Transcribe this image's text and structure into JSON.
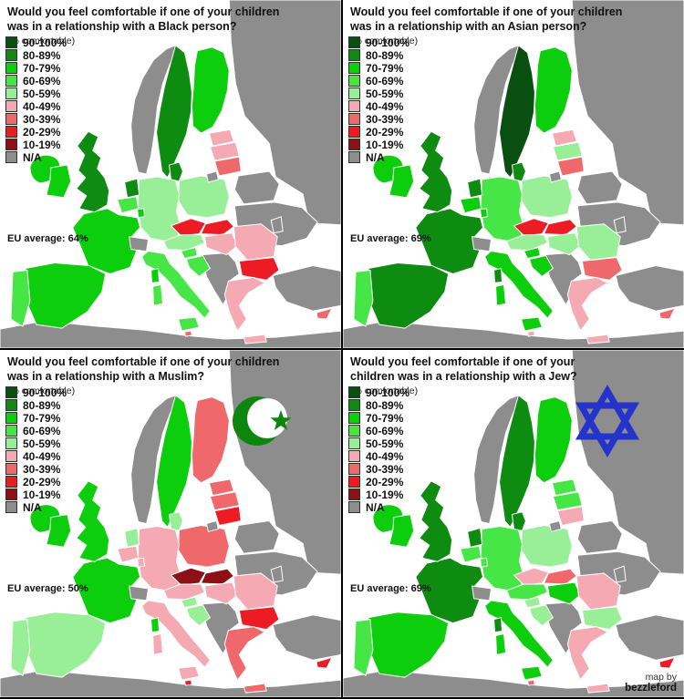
{
  "credit": {
    "prefix": "map by",
    "author": "bezzleford"
  },
  "legend": {
    "note": "(% comfortable)",
    "buckets": [
      {
        "key": "90-100",
        "label": "90-100%",
        "color": "#0a4f12"
      },
      {
        "key": "80-89",
        "label": "80-89%",
        "color": "#0e8c12"
      },
      {
        "key": "70-79",
        "label": "70-79%",
        "color": "#0cce0c"
      },
      {
        "key": "60-69",
        "label": "60-69%",
        "color": "#46e646"
      },
      {
        "key": "50-59",
        "label": "50-59%",
        "color": "#98ef98"
      },
      {
        "key": "40-49",
        "label": "40-49%",
        "color": "#f5aab3"
      },
      {
        "key": "30-39",
        "label": "30-39%",
        "color": "#ef686c"
      },
      {
        "key": "20-29",
        "label": "20-29%",
        "color": "#ed1c24"
      },
      {
        "key": "10-19",
        "label": "10-19%",
        "color": "#8d1016"
      },
      {
        "key": "NA",
        "label": "N/A",
        "color": "#8d8d8d"
      }
    ]
  },
  "chart_data": {
    "type": "choropleth",
    "unit": "percent comfortable, bucketed ranges per country",
    "maps": [
      {
        "id": "black-person",
        "title_line1": "Would you feel comfortable if one of your children",
        "title_line2": "was in a relationship with a Black person?",
        "eu_average_label": "EU average: 64%",
        "values": {
          "iceland": "70-79",
          "ireland": "70-79",
          "uk": "80-89",
          "portugal": "60-69",
          "spain": "70-79",
          "france": "70-79",
          "belgium": "60-69",
          "netherlands": "80-89",
          "luxembourg": "70-79",
          "germany": "50-59",
          "denmark": "80-89",
          "sweden": "80-89",
          "finland": "70-79",
          "estonia": "40-49",
          "latvia": "40-49",
          "lithuania": "30-39",
          "poland": "50-59",
          "czech": "20-29",
          "slovakia": "20-29",
          "austria": "50-59",
          "hungary": "40-49",
          "slovenia": "60-69",
          "croatia": "60-69",
          "italy": "60-69",
          "romania": "40-49",
          "bulgaria": "20-29",
          "greece": "40-49",
          "malta": "30-39",
          "cyprus": "30-39",
          "norway": "NA",
          "switzerland": "NA",
          "russia": "NA",
          "belarus": "NA",
          "ukraine": "NA",
          "moldova": "NA",
          "kaliningrad": "NA",
          "balkans": "NA",
          "turkey": "NA",
          "africa": "NA"
        }
      },
      {
        "id": "asian-person",
        "title_line1": "Would you feel comfortable if one of your children",
        "title_line2": "was in a relationship with an Asian person?",
        "eu_average_label": "EU average: 69%",
        "values": {
          "iceland": "70-79",
          "ireland": "70-79",
          "uk": "80-89",
          "portugal": "60-69",
          "spain": "80-89",
          "france": "80-89",
          "belgium": "70-79",
          "netherlands": "80-89",
          "luxembourg": "70-79",
          "germany": "60-69",
          "denmark": "80-89",
          "sweden": "90-100",
          "finland": "70-79",
          "estonia": "40-49",
          "latvia": "50-59",
          "lithuania": "30-39",
          "poland": "50-59",
          "czech": "20-29",
          "slovakia": "20-29",
          "austria": "50-59",
          "hungary": "50-59",
          "slovenia": "70-79",
          "croatia": "70-79",
          "italy": "70-79",
          "romania": "50-59",
          "bulgaria": "30-39",
          "greece": "40-49",
          "malta": "40-49",
          "cyprus": "30-39",
          "norway": "NA",
          "switzerland": "NA",
          "russia": "NA",
          "belarus": "NA",
          "ukraine": "NA",
          "moldova": "NA",
          "kaliningrad": "NA",
          "balkans": "NA",
          "turkey": "NA",
          "africa": "NA"
        }
      },
      {
        "id": "muslim",
        "title_line1": "Would you feel comfortable if one of your children",
        "title_line2": "was in a relationship with a Muslim?",
        "eu_average_label": "EU average: 50%",
        "symbol": {
          "type": "crescent-and-star",
          "color": "#0c860c"
        },
        "values": {
          "iceland": "70-79",
          "ireland": "70-79",
          "uk": "70-79",
          "portugal": "50-59",
          "spain": "50-59",
          "france": "70-79",
          "belgium": "40-49",
          "netherlands": "50-59",
          "luxembourg": "40-49",
          "germany": "40-49",
          "denmark": "50-59",
          "sweden": "70-79",
          "finland": "30-39",
          "estonia": "30-39",
          "latvia": "30-39",
          "lithuania": "20-29",
          "poland": "30-39",
          "czech": "10-19",
          "slovakia": "10-19",
          "austria": "40-49",
          "hungary": "40-49",
          "slovenia": "50-59",
          "croatia": "50-59",
          "italy": "40-49",
          "romania": "40-49",
          "bulgaria": "20-29",
          "greece": "30-39",
          "malta": "20-29",
          "cyprus": "20-29",
          "norway": "NA",
          "switzerland": "NA",
          "russia": "NA",
          "belarus": "NA",
          "ukraine": "NA",
          "moldova": "NA",
          "kaliningrad": "NA",
          "balkans": "NA",
          "turkey": "NA",
          "africa": "NA"
        }
      },
      {
        "id": "jew",
        "title_line1": "Would you feel comfortable if one of your",
        "title_line2": "children was in a relationship with a Jew?",
        "eu_average_label": "EU average: 69%",
        "symbol": {
          "type": "star-of-david",
          "color": "#2433cc"
        },
        "values": {
          "iceland": "70-79",
          "ireland": "70-79",
          "uk": "80-89",
          "portugal": "60-69",
          "spain": "70-79",
          "france": "80-89",
          "belgium": "60-69",
          "netherlands": "80-89",
          "luxembourg": "60-69",
          "germany": "60-69",
          "denmark": "80-89",
          "sweden": "80-89",
          "finland": "70-79",
          "estonia": "60-69",
          "latvia": "60-69",
          "lithuania": "40-49",
          "poland": "50-59",
          "czech": "40-49",
          "slovakia": "30-39",
          "austria": "60-69",
          "hungary": "70-79",
          "slovenia": "50-59",
          "croatia": "50-59",
          "italy": "70-79",
          "romania": "40-49",
          "bulgaria": "50-59",
          "greece": "40-49",
          "malta": "30-39",
          "cyprus": "20-29",
          "norway": "NA",
          "switzerland": "NA",
          "russia": "NA",
          "belarus": "NA",
          "ukraine": "NA",
          "moldova": "NA",
          "kaliningrad": "NA",
          "balkans": "NA",
          "turkey": "NA",
          "africa": "NA"
        }
      }
    ]
  }
}
